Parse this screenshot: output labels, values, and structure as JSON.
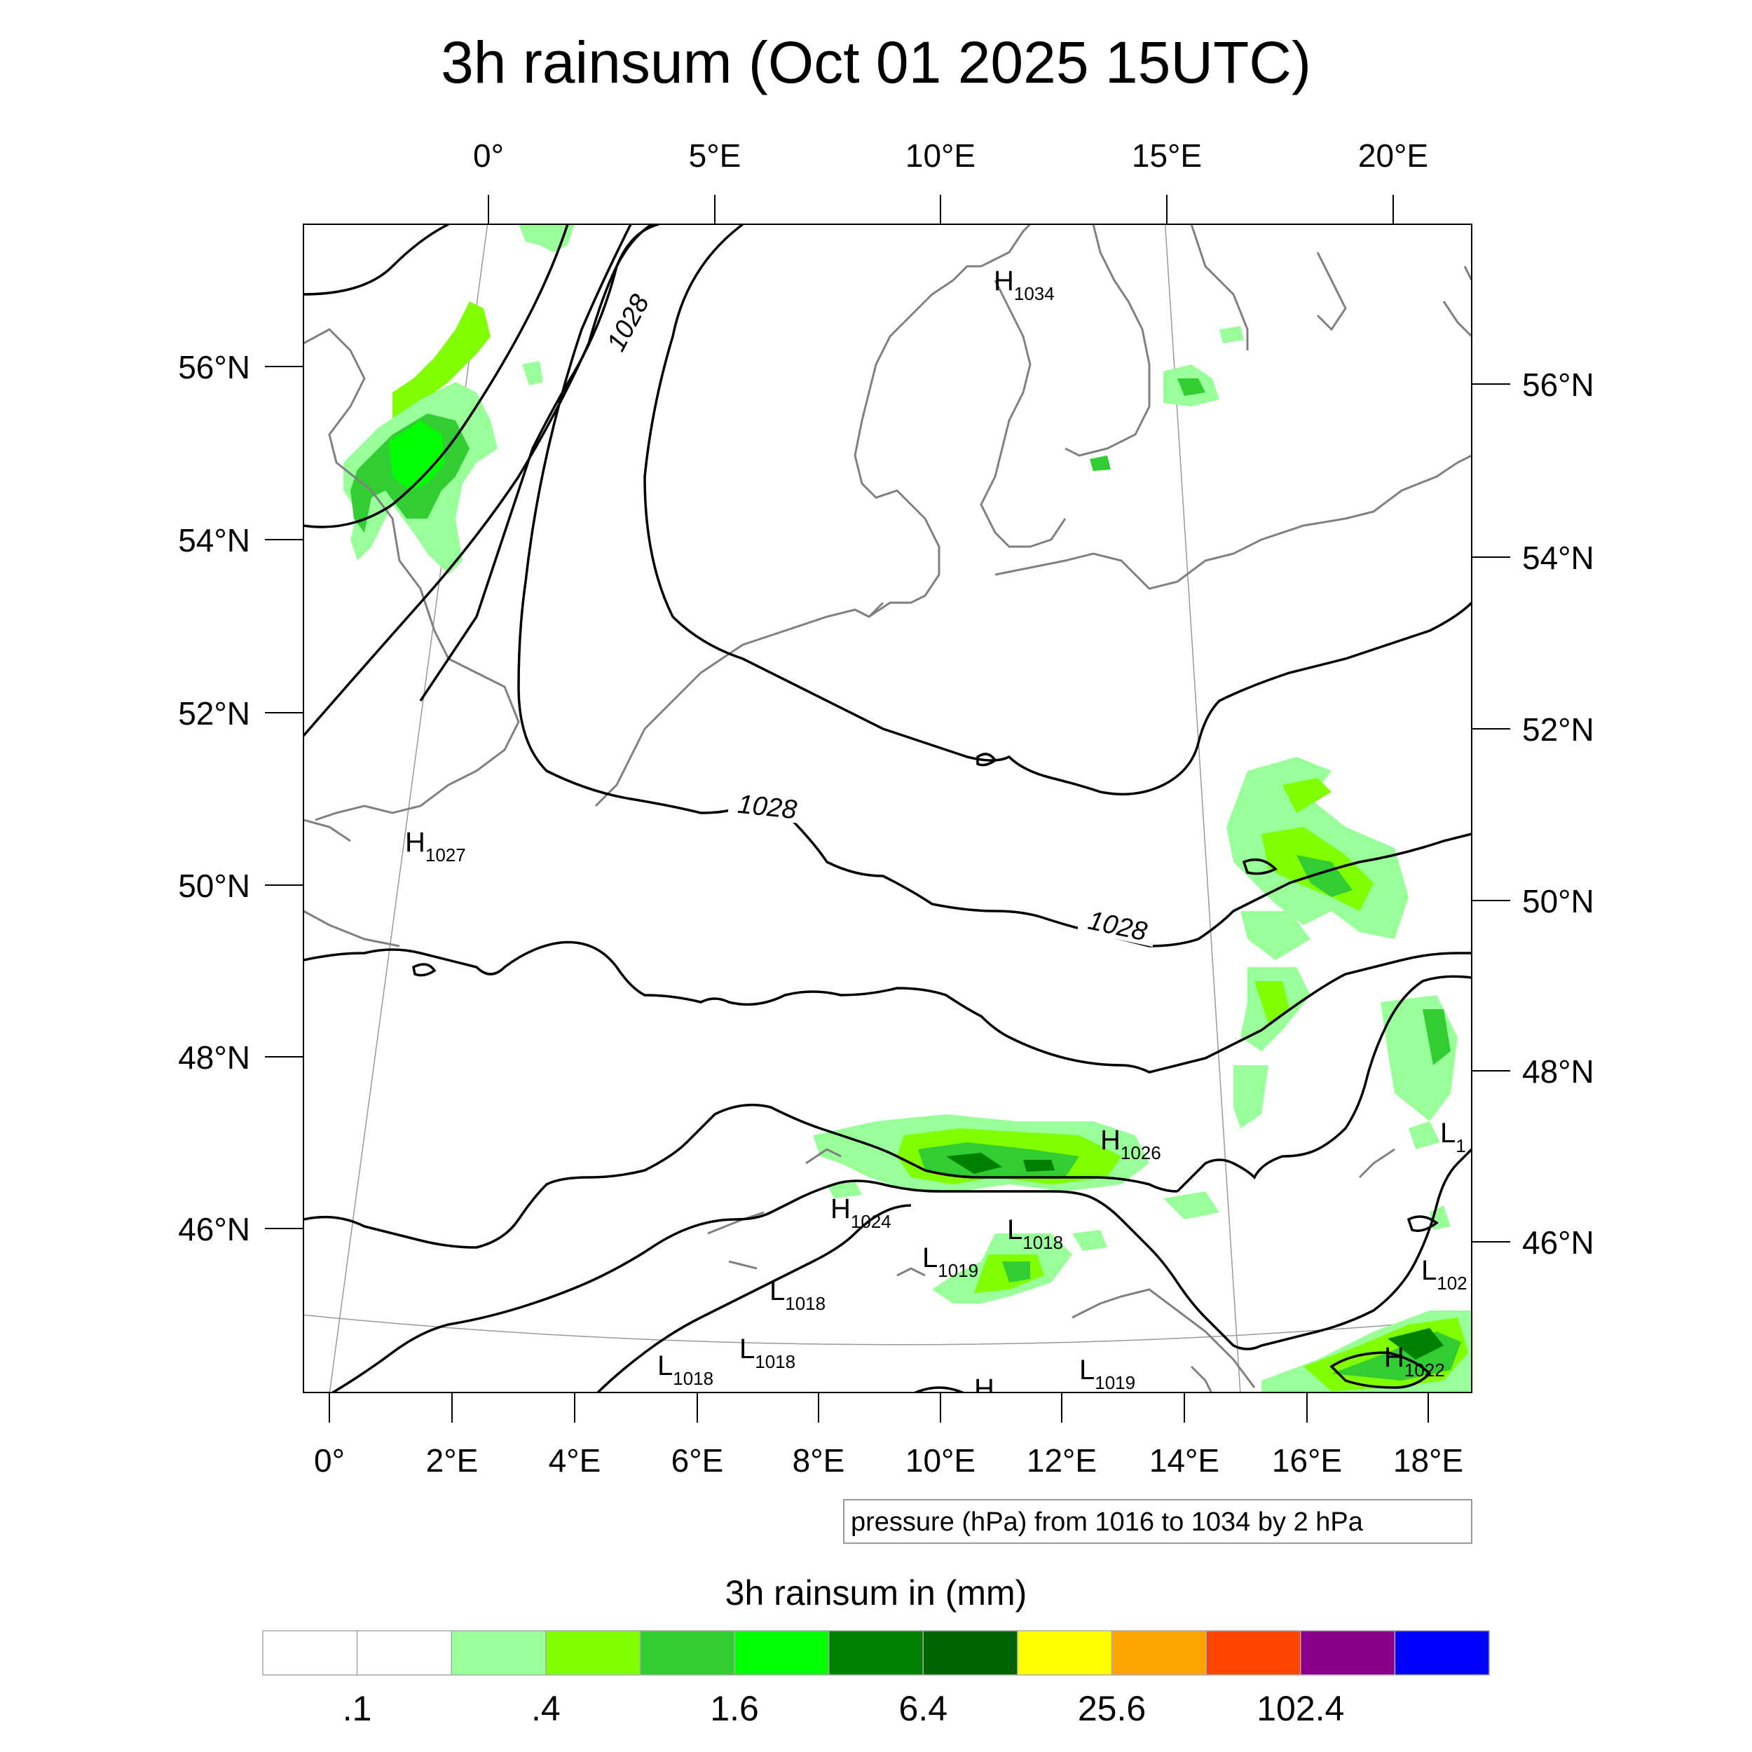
{
  "title": "3h rainsum (Oct 01 2025 15UTC)",
  "top_lon_labels": [
    "0°",
    "5°E",
    "10°E",
    "15°E",
    "20°E"
  ],
  "left_lat_labels": [
    "56°N",
    "54°N",
    "52°N",
    "50°N",
    "48°N",
    "46°N"
  ],
  "right_lat_labels": [
    "56°N",
    "54°N",
    "52°N",
    "50°N",
    "48°N",
    "46°N"
  ],
  "bottom_lon_labels": [
    "0°",
    "2°E",
    "4°E",
    "6°E",
    "8°E",
    "10°E",
    "12°E",
    "14°E",
    "16°E",
    "18°E"
  ],
  "contour_info": "pressure (hPa) from 1016 to 1034 by 2 hPa",
  "contour_labels": [
    "1028",
    "1028",
    "1028"
  ],
  "pressure_centers": [
    {
      "type": "H",
      "value": "1034"
    },
    {
      "type": "H",
      "value": "1027"
    },
    {
      "type": "H",
      "value": "1026"
    },
    {
      "type": "H",
      "value": "1024"
    },
    {
      "type": "L",
      "value": "1018"
    },
    {
      "type": "L",
      "value": "1019"
    },
    {
      "type": "L",
      "value": "1018"
    },
    {
      "type": "L",
      "value": "1018"
    },
    {
      "type": "L",
      "value": "1018"
    },
    {
      "type": "L",
      "value": "1019"
    },
    {
      "type": "H",
      "value": "1022"
    },
    {
      "type": "L",
      "value": "102"
    },
    {
      "type": "L",
      "value": "1"
    },
    {
      "type": "H",
      "value": ""
    }
  ],
  "colorbar": {
    "title": "3h rainsum in (mm)",
    "colors": [
      "#ffffff",
      "#ffffff",
      "#99ff99",
      "#7fff00",
      "#32cd32",
      "#00ff00",
      "#008000",
      "#006400",
      "#ffff00",
      "#ffa500",
      "#ff4500",
      "#8b008b",
      "#0000ff"
    ],
    "labels": [
      ".1",
      ".4",
      "1.6",
      "6.4",
      "25.6",
      "102.4"
    ]
  }
}
